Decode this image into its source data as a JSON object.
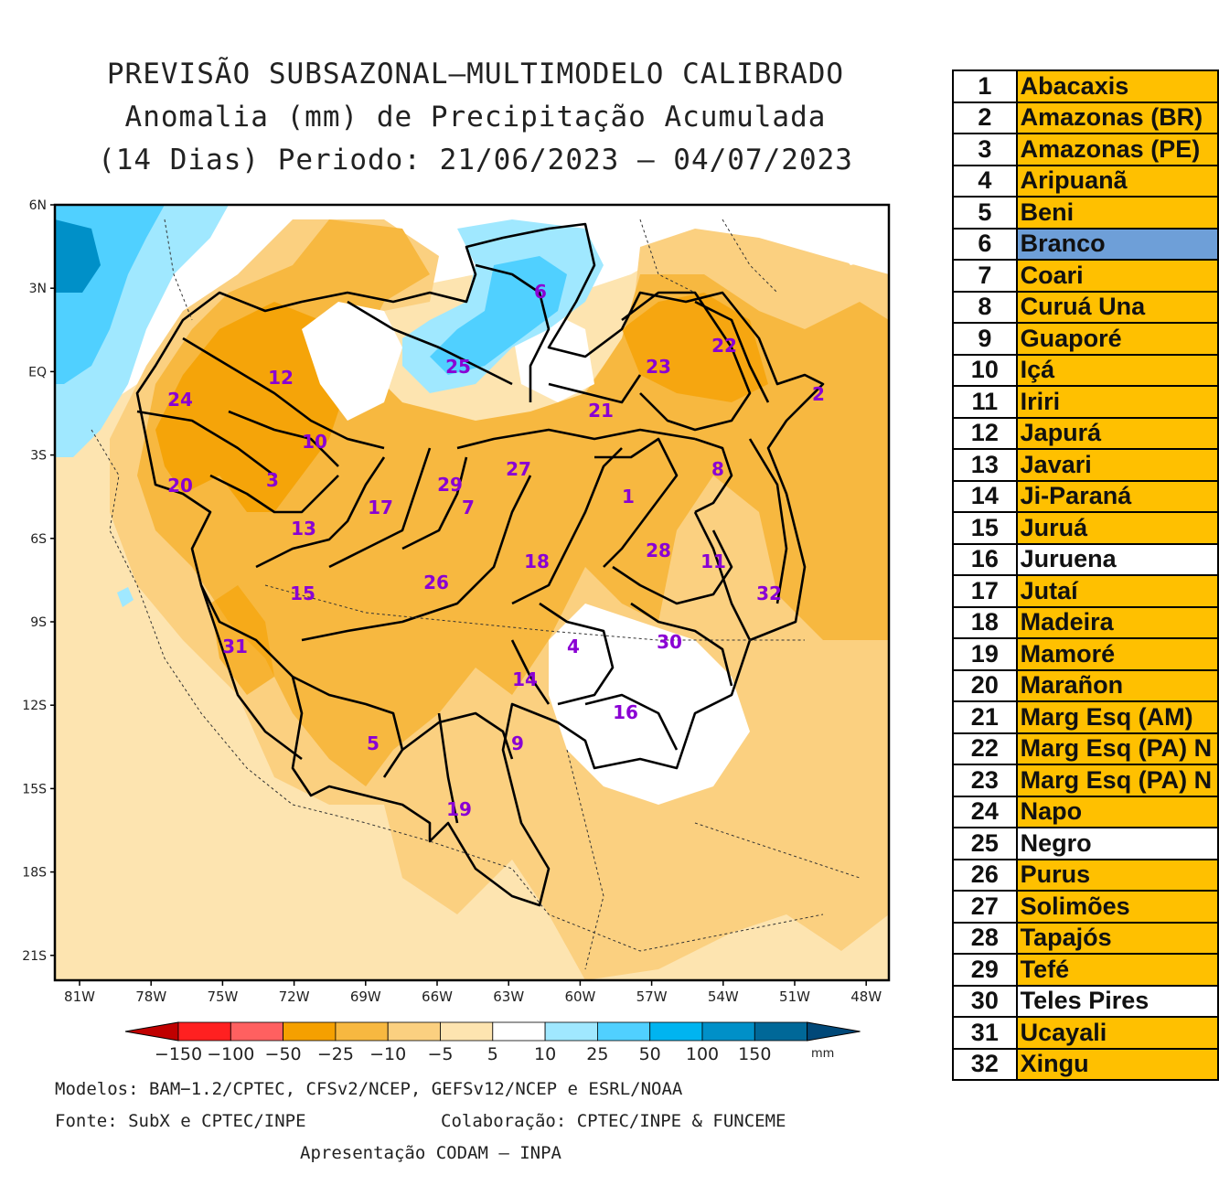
{
  "title": {
    "line1": "PREVISÃO SUBSAZONAL—MULTIMODELO CALIBRADO",
    "line2": "Anomalia (mm) de Precipitação Acumulada",
    "line3": "(14 Dias) Periodo: 21/06/2023 — 04/07/2023"
  },
  "axes": {
    "lat_labels": [
      "6N",
      "3N",
      "EQ",
      "3S",
      "6S",
      "9S",
      "12S",
      "15S",
      "18S",
      "21S"
    ],
    "lon_labels": [
      "81W",
      "78W",
      "75W",
      "72W",
      "69W",
      "66W",
      "63W",
      "60W",
      "57W",
      "54W",
      "51W",
      "48W"
    ]
  },
  "colorbar": {
    "labels": [
      "−150",
      "−100",
      "−50",
      "−25",
      "−10",
      "−5",
      "5",
      "10",
      "25",
      "50",
      "100",
      "150"
    ],
    "unit": "mm",
    "colors": [
      "#c00000",
      "#ff2020",
      "#ff6060",
      "#f5a000",
      "#f7b840",
      "#fbd080",
      "#fde4b0",
      "#ffffff",
      "#a0e8ff",
      "#50d0ff",
      "#00b4f0",
      "#0090c8",
      "#006898",
      "#004878"
    ]
  },
  "regions": [
    {
      "id": "1",
      "label": "1"
    },
    {
      "id": "2",
      "label": "2"
    },
    {
      "id": "3",
      "label": "3"
    },
    {
      "id": "4",
      "label": "4"
    },
    {
      "id": "5",
      "label": "5"
    },
    {
      "id": "6",
      "label": "6"
    },
    {
      "id": "7",
      "label": "7"
    },
    {
      "id": "8",
      "label": "8"
    },
    {
      "id": "9",
      "label": "9"
    },
    {
      "id": "10",
      "label": "10"
    },
    {
      "id": "11",
      "label": "11"
    },
    {
      "id": "12",
      "label": "12"
    },
    {
      "id": "13",
      "label": "13"
    },
    {
      "id": "14",
      "label": "14"
    },
    {
      "id": "15",
      "label": "15"
    },
    {
      "id": "16",
      "label": "16"
    },
    {
      "id": "17",
      "label": "17"
    },
    {
      "id": "18",
      "label": "18"
    },
    {
      "id": "19",
      "label": "19"
    },
    {
      "id": "20",
      "label": "20"
    },
    {
      "id": "21",
      "label": "21"
    },
    {
      "id": "22",
      "label": "22"
    },
    {
      "id": "23",
      "label": "23"
    },
    {
      "id": "24",
      "label": "24"
    },
    {
      "id": "25",
      "label": "25"
    },
    {
      "id": "26",
      "label": "26"
    },
    {
      "id": "27",
      "label": "27"
    },
    {
      "id": "28",
      "label": "28"
    },
    {
      "id": "29",
      "label": "29"
    },
    {
      "id": "30",
      "label": "30"
    },
    {
      "id": "31",
      "label": "31"
    },
    {
      "id": "32",
      "label": "32"
    }
  ],
  "footer": {
    "models": "Modelos: BAM−1.2/CPTEC, CFSv2/NCEP, GEFSv12/NCEP e ESRL/NOAA",
    "source": "Fonte: SubX e CPTEC/INPE",
    "collab": "Colaboração: CPTEC/INPE & FUNCEME",
    "presentation": "Apresentação CODAM — INPA"
  },
  "basins": [
    {
      "num": "1",
      "name": "Abacaxis",
      "color": "#ffc000"
    },
    {
      "num": "2",
      "name": "Amazonas (BR)",
      "color": "#ffc000"
    },
    {
      "num": "3",
      "name": "Amazonas (PE)",
      "color": "#ffc000"
    },
    {
      "num": "4",
      "name": "Aripuanã",
      "color": "#ffc000"
    },
    {
      "num": "5",
      "name": "Beni",
      "color": "#ffc000"
    },
    {
      "num": "6",
      "name": "Branco",
      "color": "#6e9fd8"
    },
    {
      "num": "7",
      "name": "Coari",
      "color": "#ffc000"
    },
    {
      "num": "8",
      "name": "Curuá Una",
      "color": "#ffc000"
    },
    {
      "num": "9",
      "name": "Guaporé",
      "color": "#ffc000"
    },
    {
      "num": "10",
      "name": "Içá",
      "color": "#ffc000"
    },
    {
      "num": "11",
      "name": "Iriri",
      "color": "#ffc000"
    },
    {
      "num": "12",
      "name": "Japurá",
      "color": "#ffc000"
    },
    {
      "num": "13",
      "name": "Javari",
      "color": "#ffc000"
    },
    {
      "num": "14",
      "name": "Ji-Paraná",
      "color": "#ffc000"
    },
    {
      "num": "15",
      "name": "Juruá",
      "color": "#ffc000"
    },
    {
      "num": "16",
      "name": "Juruena",
      "color": "#ffffff"
    },
    {
      "num": "17",
      "name": "Jutaí",
      "color": "#ffc000"
    },
    {
      "num": "18",
      "name": "Madeira",
      "color": "#ffc000"
    },
    {
      "num": "19",
      "name": "Mamoré",
      "color": "#ffc000"
    },
    {
      "num": "20",
      "name": "Marañon",
      "color": "#ffc000"
    },
    {
      "num": "21",
      "name": "Marg Esq (AM)",
      "color": "#ffc000"
    },
    {
      "num": "22",
      "name": "Marg Esq (PA) N",
      "color": "#ffc000"
    },
    {
      "num": "23",
      "name": "Marg Esq (PA) N",
      "color": "#ffc000"
    },
    {
      "num": "24",
      "name": "Napo",
      "color": "#ffc000"
    },
    {
      "num": "25",
      "name": "Negro",
      "color": "#ffffff"
    },
    {
      "num": "26",
      "name": "Purus",
      "color": "#ffc000"
    },
    {
      "num": "27",
      "name": "Solimões",
      "color": "#ffc000"
    },
    {
      "num": "28",
      "name": "Tapajós",
      "color": "#ffc000"
    },
    {
      "num": "29",
      "name": "Tefé",
      "color": "#ffc000"
    },
    {
      "num": "30",
      "name": "Teles Pires",
      "color": "#ffffff"
    },
    {
      "num": "31",
      "name": "Ucayali",
      "color": "#ffc000"
    },
    {
      "num": "32",
      "name": "Xingu",
      "color": "#ffc000"
    }
  ]
}
